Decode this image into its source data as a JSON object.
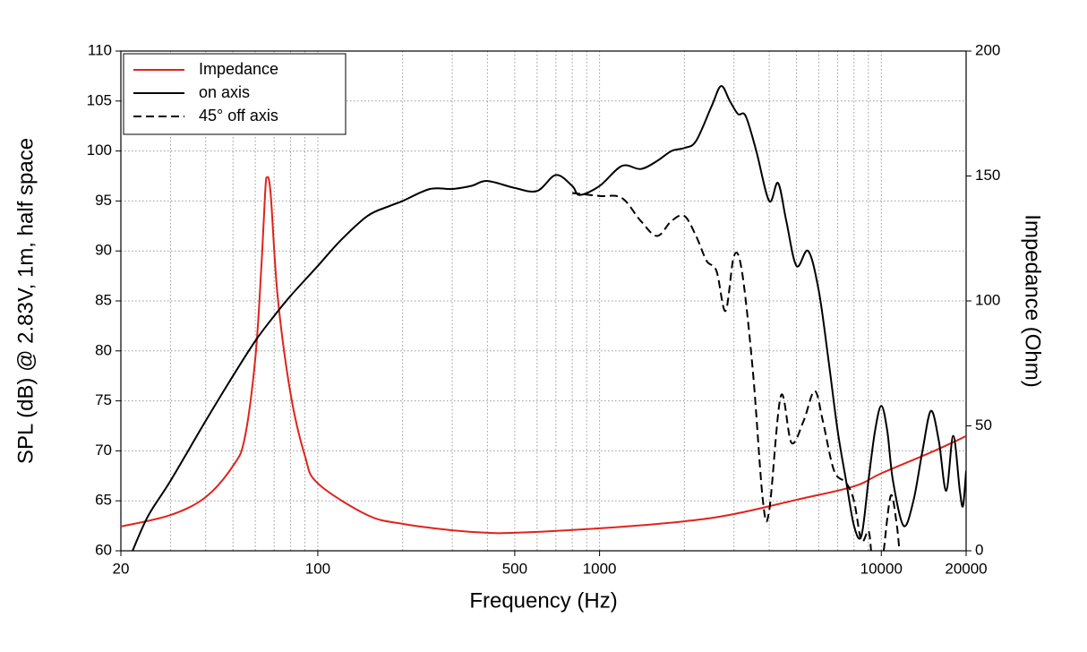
{
  "chart_data": {
    "type": "line",
    "x_label": "Frequency (Hz)",
    "y_label": "SPL (dB) @ 2.83V, 1m, half space",
    "y2_label": "Impedance (Ohm)",
    "xscale": "log",
    "xlim": [
      20,
      20000
    ],
    "xticks": [
      20,
      100,
      500,
      1000,
      10000,
      20000
    ],
    "xgrid_minor": [
      30,
      40,
      50,
      60,
      70,
      80,
      90,
      200,
      300,
      400,
      600,
      700,
      800,
      900,
      2000,
      3000,
      4000,
      5000,
      6000,
      7000,
      8000,
      9000
    ],
    "ylim": [
      60,
      110
    ],
    "yticks": [
      60,
      65,
      70,
      75,
      80,
      85,
      90,
      95,
      100,
      105,
      110
    ],
    "y2lim": [
      0,
      200
    ],
    "y2ticks": [
      0,
      50,
      100,
      150,
      200
    ],
    "grid": true,
    "legend": "upper left",
    "series": [
      {
        "name": "Impedance",
        "color": "#e0231b",
        "dash": "solid",
        "axis": "y2",
        "x": [
          20,
          30,
          40,
          50,
          55,
          60,
          63,
          65,
          66,
          68,
          72,
          80,
          90,
          100,
          150,
          200,
          300,
          400,
          500,
          1000,
          2000,
          3000,
          5000,
          8000,
          10000,
          15000,
          20000
        ],
        "values": [
          9.7,
          14.3,
          21.5,
          34,
          45,
          77,
          113,
          143,
          149.5,
          143,
          102,
          63,
          38,
          27,
          14.3,
          10.8,
          8.2,
          7.2,
          7.2,
          9,
          11.8,
          14.7,
          20.4,
          25.8,
          31,
          39.4,
          45.9
        ]
      },
      {
        "name": "on axis",
        "color": "#000000",
        "dash": "solid",
        "x": [
          22,
          25,
          30,
          40,
          50,
          60,
          70,
          80,
          100,
          120,
          150,
          180,
          200,
          250,
          300,
          350,
          400,
          500,
          600,
          700,
          800,
          850,
          1000,
          1200,
          1400,
          1600,
          1800,
          2000,
          2200,
          2500,
          2700,
          2900,
          3100,
          3300,
          3600,
          4000,
          4300,
          4600,
          5000,
          5500,
          6000,
          6500,
          7000,
          7500,
          8000,
          8500,
          9000,
          9500,
          10000,
          10500,
          11000,
          12000,
          13000,
          14000,
          15000,
          16000,
          17000,
          18000,
          19000,
          19500,
          20000
        ],
        "values": [
          60,
          63.5,
          67,
          73,
          77.5,
          81,
          83.5,
          85.5,
          88.5,
          91,
          93.5,
          94.5,
          95,
          96.2,
          96.2,
          96.5,
          97,
          96.3,
          96,
          97.6,
          96.5,
          95.6,
          96.5,
          98.5,
          98.2,
          99,
          100,
          100.3,
          101,
          104.5,
          106.5,
          105,
          103.7,
          103.5,
          100,
          95,
          96.8,
          93,
          88.5,
          90,
          86,
          79,
          72,
          67,
          62.5,
          61.5,
          67,
          72,
          74.5,
          72,
          67,
          62.5,
          65,
          70,
          74,
          71,
          66,
          71.5,
          66,
          64.5,
          68
        ]
      },
      {
        "name": "45° off axis",
        "color": "#000000",
        "dash": "dashed",
        "x": [
          800,
          1000,
          1200,
          1400,
          1600,
          1800,
          2000,
          2200,
          2400,
          2600,
          2800,
          3000,
          3200,
          3500,
          3800,
          4000,
          4400,
          4800,
          5300,
          5800,
          6200,
          6800,
          7500,
          8000,
          8500,
          9000,
          9200,
          9700,
          10200,
          10800,
          11300,
          11600
        ],
        "values": [
          95.8,
          95.5,
          95.3,
          93,
          91.5,
          93,
          93.5,
          91.5,
          89,
          88,
          84,
          89.5,
          88,
          78,
          65,
          64,
          75.5,
          70.8,
          73,
          76,
          73,
          68,
          66.8,
          65,
          61,
          62,
          60,
          null,
          60,
          65.5,
          63,
          60
        ]
      }
    ]
  }
}
